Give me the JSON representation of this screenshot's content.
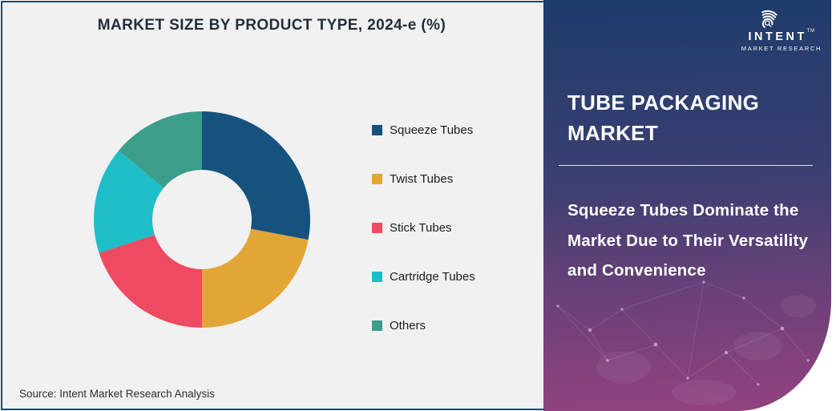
{
  "chart": {
    "title": "MARKET SIZE BY PRODUCT TYPE, 2024-e (%)",
    "source": "Source: Intent Market Research Analysis",
    "background": "#f1f1f2",
    "frame_border_color": "#164a70"
  },
  "chart_data": {
    "type": "pie",
    "subtype": "donut",
    "title": "MARKET SIZE BY PRODUCT TYPE, 2024-e (%)",
    "categories": [
      "Squeeze Tubes",
      "Twist Tubes",
      "Stick Tubes",
      "Cartridge Tubes",
      "Others"
    ],
    "values": [
      28,
      22,
      20,
      16,
      14
    ],
    "unit": "%",
    "colors": [
      "#15527e",
      "#e2a637",
      "#ee4a62",
      "#1fbdc8",
      "#3d9d8b"
    ],
    "legend_position": "right",
    "donut_hole_ratio": 0.46,
    "start_angle_deg": 0,
    "direction": "clockwise",
    "data_labels_shown": false
  },
  "panel": {
    "title": "TUBE PACKAGING MARKET",
    "subtitle": "Squeeze Tubes Dominate the Market Due to Their Versatility and Convenience",
    "gradient_top": "#1d3c6b",
    "gradient_bottom": "#93427f",
    "logo": {
      "name": "INTENT",
      "sub": "MARKET RESEARCH",
      "tm": "TM"
    }
  }
}
